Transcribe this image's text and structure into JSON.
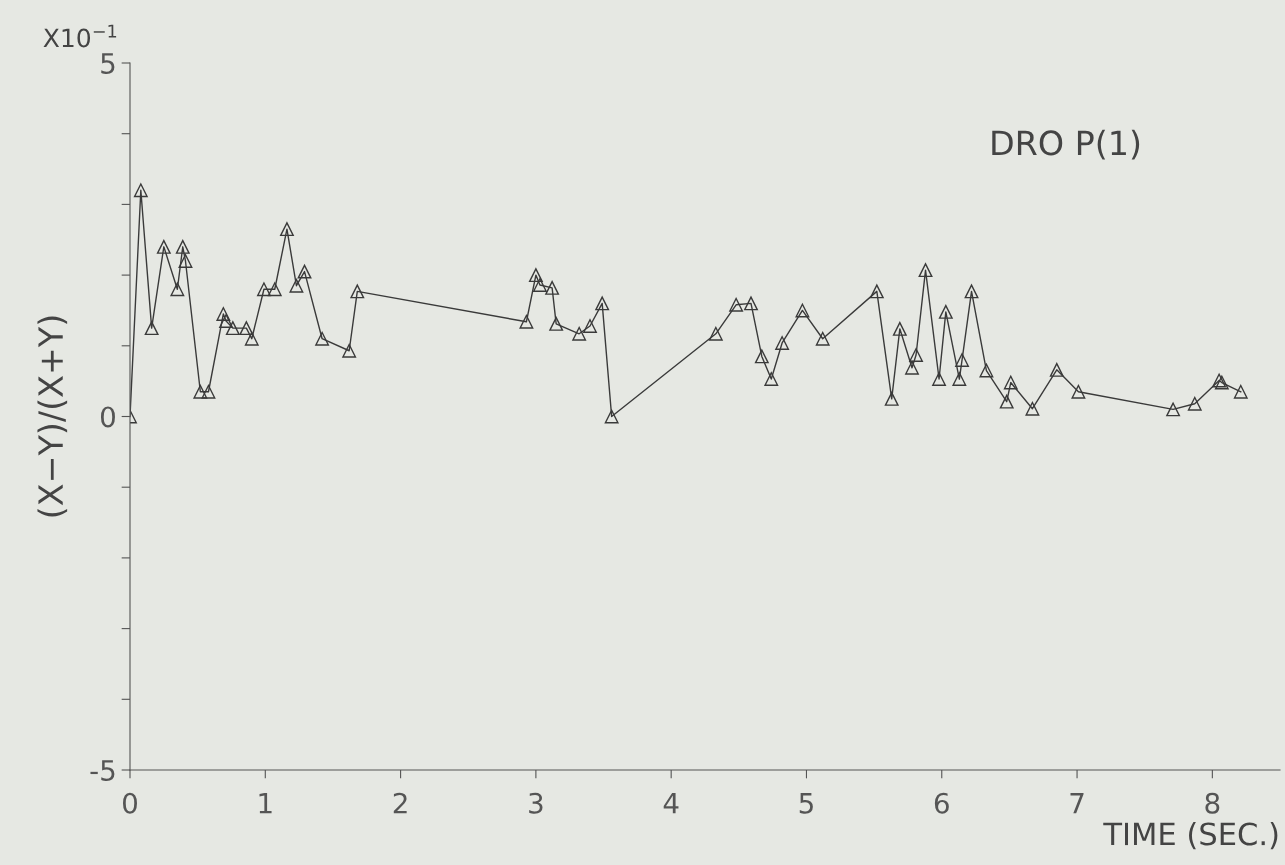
{
  "chart_data": {
    "type": "line",
    "xlabel": "TIME (SEC.)",
    "ylabel": "(X−Y)/(X+Y)",
    "annotations": [
      "X10$^{−1}$",
      "DRO P(1)"
    ],
    "marker": "triangle",
    "line_style": "solid",
    "grid": false,
    "legend": false,
    "xlim": [
      0,
      8.5
    ],
    "ylim": [
      -5,
      5
    ],
    "xticks": [
      0,
      1,
      2,
      3,
      4,
      5,
      6,
      7,
      8
    ],
    "yticks": [
      -5,
      {
        "value": -4,
        "label": null
      },
      {
        "value": -3,
        "label": null
      },
      {
        "value": -2,
        "label": null
      },
      {
        "value": -1,
        "label": null
      },
      0,
      {
        "value": 1,
        "label": null
      },
      {
        "value": 2,
        "label": null
      },
      {
        "value": 3,
        "label": null
      },
      {
        "value": 4,
        "label": null
      },
      5
    ],
    "series": [
      {
        "color": "#3a3a3a",
        "x": [
          0,
          0.08,
          0.16,
          0.25,
          0.35,
          0.39,
          0.41,
          0.52,
          0.58,
          0.69,
          0.71,
          0.76,
          0.86,
          0.9,
          0.99,
          1.07,
          1.16,
          1.23,
          1.29,
          1.42,
          1.62,
          1.68,
          2.93,
          3.0,
          3.03,
          3.12,
          3.15,
          3.32,
          3.4,
          3.49,
          3.56,
          4.33,
          4.48,
          4.59,
          4.67,
          4.74,
          4.82,
          4.97,
          5.12,
          5.52,
          5.63,
          5.69,
          5.78,
          5.81,
          5.88,
          5.98,
          6.03,
          6.13,
          6.15,
          6.22,
          6.33,
          6.48,
          6.51,
          6.67,
          6.85,
          7.01,
          7.71,
          7.87,
          8.05,
          8.07,
          8.21
        ],
        "values": [
          0,
          3.2,
          1.25,
          2.4,
          1.8,
          2.4,
          2.2,
          0.35,
          0.35,
          1.45,
          1.35,
          1.25,
          1.25,
          1.1,
          1.8,
          1.8,
          2.65,
          1.85,
          2.05,
          1.1,
          0.93,
          1.77,
          1.34,
          2.0,
          1.86,
          1.82,
          1.31,
          1.17,
          1.28,
          1.6,
          0.0,
          1.17,
          1.58,
          1.6,
          0.85,
          0.53,
          1.04,
          1.5,
          1.1,
          1.77,
          0.25,
          1.24,
          0.69,
          0.87,
          2.07,
          0.53,
          1.48,
          0.53,
          0.8,
          1.77,
          0.65,
          0.21,
          0.48,
          0.11,
          0.66,
          0.35,
          0.1,
          0.18,
          0.51,
          0.48,
          0.35
        ]
      }
    ]
  }
}
